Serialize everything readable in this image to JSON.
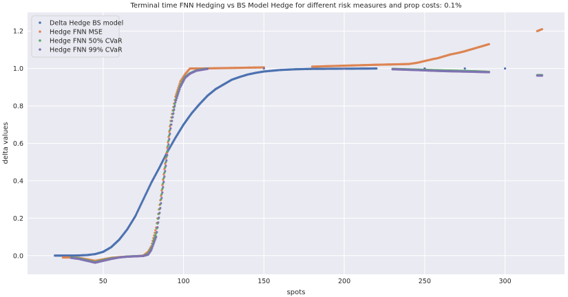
{
  "chart_data": {
    "type": "scatter",
    "title": "Terminal time FNN Hedging vs BS Model Hedge for different risk measures and prop costs: 0.1%",
    "xlabel": "spots",
    "ylabel": "delta values",
    "xlim": [
      3,
      337
    ],
    "ylim": [
      -0.1,
      1.3
    ],
    "xticks": [
      50,
      100,
      150,
      200,
      250,
      300
    ],
    "yticks": [
      0.0,
      0.2,
      0.4,
      0.6,
      0.8,
      1.0,
      1.2
    ],
    "xtick_labels": [
      "50",
      "100",
      "150",
      "200",
      "250",
      "300"
    ],
    "ytick_labels": [
      "0.0",
      "0.2",
      "0.4",
      "0.6",
      "0.8",
      "1.0",
      "1.2"
    ],
    "grid": true,
    "background": "#eaeaf2",
    "legend_position": "top-left",
    "series": [
      {
        "name": "Delta Hedge BS model",
        "color": "#4c72b0",
        "points": [
          [
            20,
            0.0
          ],
          [
            25,
            0.0
          ],
          [
            30,
            0.0
          ],
          [
            35,
            0.001
          ],
          [
            40,
            0.003
          ],
          [
            45,
            0.008
          ],
          [
            50,
            0.02
          ],
          [
            55,
            0.045
          ],
          [
            60,
            0.085
          ],
          [
            65,
            0.14
          ],
          [
            70,
            0.21
          ],
          [
            75,
            0.3
          ],
          [
            80,
            0.39
          ],
          [
            85,
            0.47
          ],
          [
            90,
            0.555
          ],
          [
            95,
            0.63
          ],
          [
            100,
            0.7
          ],
          [
            105,
            0.76
          ],
          [
            110,
            0.81
          ],
          [
            115,
            0.855
          ],
          [
            120,
            0.89
          ],
          [
            125,
            0.915
          ],
          [
            130,
            0.94
          ],
          [
            135,
            0.955
          ],
          [
            140,
            0.968
          ],
          [
            145,
            0.977
          ],
          [
            150,
            0.984
          ],
          [
            160,
            0.992
          ],
          [
            170,
            0.996
          ],
          [
            180,
            0.998
          ],
          [
            200,
            0.999
          ],
          [
            220,
            1.0
          ],
          [
            250,
            1.0
          ],
          [
            275,
            1.0
          ],
          [
            300,
            1.0
          ]
        ]
      },
      {
        "name": "Hedge FNN MSE",
        "color": "#dd8452",
        "points": [
          [
            25,
            -0.01
          ],
          [
            30,
            -0.01
          ],
          [
            35,
            -0.012
          ],
          [
            40,
            -0.02
          ],
          [
            45,
            -0.028
          ],
          [
            50,
            -0.02
          ],
          [
            55,
            -0.012
          ],
          [
            60,
            -0.008
          ],
          [
            65,
            -0.005
          ],
          [
            70,
            -0.004
          ],
          [
            75,
            0.0
          ],
          [
            78,
            0.02
          ],
          [
            80,
            0.05
          ],
          [
            83,
            0.15
          ],
          [
            86,
            0.32
          ],
          [
            89,
            0.52
          ],
          [
            92,
            0.72
          ],
          [
            95,
            0.85
          ],
          [
            98,
            0.93
          ],
          [
            101,
            0.97
          ],
          [
            104,
            1.0
          ],
          [
            110,
            1.0
          ],
          [
            130,
            1.003
          ],
          [
            150,
            1.006
          ],
          [
            180,
            1.01
          ],
          [
            200,
            1.015
          ],
          [
            220,
            1.02
          ],
          [
            240,
            1.024
          ],
          [
            245,
            1.03
          ],
          [
            250,
            1.04
          ],
          [
            255,
            1.05
          ],
          [
            258,
            1.055
          ],
          [
            262,
            1.065
          ],
          [
            266,
            1.075
          ],
          [
            270,
            1.082
          ],
          [
            274,
            1.09
          ],
          [
            282,
            1.11
          ],
          [
            290,
            1.13
          ],
          [
            320,
            1.2
          ],
          [
            323,
            1.21
          ]
        ]
      },
      {
        "name": "Hedge FNN 50% CVaR",
        "color": "#55a868",
        "points": [
          [
            30,
            -0.01
          ],
          [
            35,
            -0.015
          ],
          [
            40,
            -0.025
          ],
          [
            45,
            -0.035
          ],
          [
            50,
            -0.025
          ],
          [
            55,
            -0.015
          ],
          [
            60,
            -0.01
          ],
          [
            65,
            -0.005
          ],
          [
            70,
            -0.003
          ],
          [
            75,
            -0.002
          ],
          [
            78,
            0.01
          ],
          [
            80,
            0.04
          ],
          [
            83,
            0.12
          ],
          [
            86,
            0.3
          ],
          [
            89,
            0.5
          ],
          [
            92,
            0.7
          ],
          [
            95,
            0.83
          ],
          [
            98,
            0.91
          ],
          [
            101,
            0.955
          ],
          [
            104,
            0.975
          ],
          [
            108,
            0.99
          ],
          [
            115,
            1.0
          ],
          [
            150,
            1.0
          ],
          [
            200,
            1.0
          ],
          [
            230,
            0.998
          ],
          [
            250,
            0.993
          ],
          [
            260,
            0.99
          ],
          [
            270,
            0.988
          ],
          [
            282,
            0.985
          ],
          [
            290,
            0.982
          ],
          [
            320,
            0.965
          ],
          [
            323,
            0.965
          ]
        ]
      },
      {
        "name": "Hedge FNN 99% CVaR",
        "color": "#8172b2",
        "points": [
          [
            30,
            -0.012
          ],
          [
            35,
            -0.018
          ],
          [
            40,
            -0.028
          ],
          [
            45,
            -0.038
          ],
          [
            50,
            -0.028
          ],
          [
            55,
            -0.018
          ],
          [
            60,
            -0.01
          ],
          [
            65,
            -0.006
          ],
          [
            70,
            -0.004
          ],
          [
            75,
            -0.002
          ],
          [
            78,
            0.005
          ],
          [
            80,
            0.03
          ],
          [
            83,
            0.1
          ],
          [
            86,
            0.28
          ],
          [
            89,
            0.48
          ],
          [
            92,
            0.68
          ],
          [
            95,
            0.82
          ],
          [
            98,
            0.9
          ],
          [
            101,
            0.95
          ],
          [
            104,
            0.972
          ],
          [
            108,
            0.988
          ],
          [
            115,
            0.998
          ],
          [
            150,
            1.0
          ],
          [
            200,
            1.0
          ],
          [
            230,
            0.996
          ],
          [
            250,
            0.99
          ],
          [
            255,
            0.988
          ],
          [
            262,
            0.986
          ],
          [
            272,
            0.984
          ],
          [
            282,
            0.982
          ],
          [
            290,
            0.98
          ],
          [
            320,
            0.962
          ],
          [
            323,
            0.962
          ]
        ]
      }
    ]
  }
}
